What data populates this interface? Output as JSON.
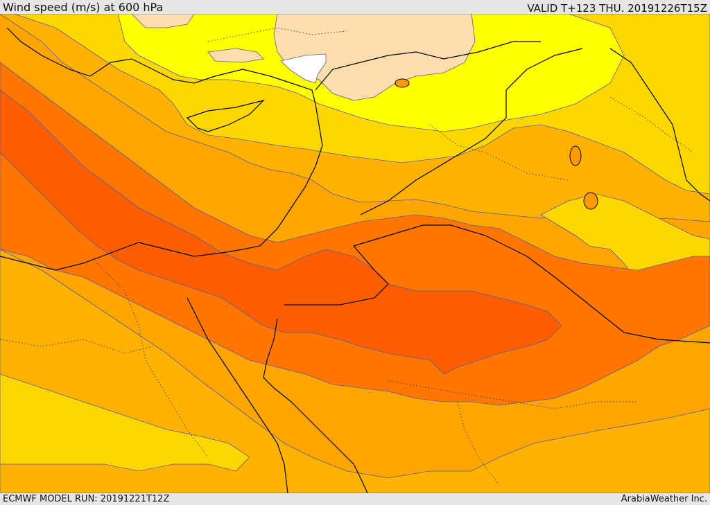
{
  "header": {
    "title": "Wind speed (m/s) at 600 hPa",
    "valid_time": "VALID T+123 THU. 20191226T15Z"
  },
  "footer": {
    "model_run": "ECMWF MODEL RUN: 20191221T12Z",
    "credit": "ArabiaWeather Inc."
  },
  "colors": {
    "lt5": "#ffffff",
    "c5_10": "#ffdead",
    "c10_15": "#ffff00",
    "c15_20": "#ffd700",
    "c20_25": "#ffb300",
    "c25_30": "#ff9900",
    "c30_35": "#ff7700",
    "gt35": "#ff5e00",
    "contour": "#5a5a8c",
    "coast": "#000000"
  }
}
